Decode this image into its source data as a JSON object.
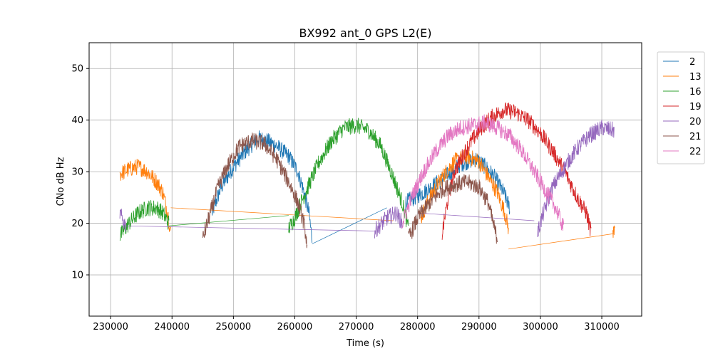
{
  "chart_data": {
    "type": "line",
    "title": "BX992 ant_0 GPS L2(E)",
    "xlabel": "Time (s)",
    "ylabel": "CNo dB Hz",
    "xlim": [
      226500,
      316500
    ],
    "ylim": [
      2,
      55
    ],
    "xticks": [
      230000,
      240000,
      250000,
      260000,
      270000,
      280000,
      290000,
      300000,
      310000
    ],
    "yticks": [
      10,
      20,
      30,
      40,
      50
    ],
    "grid": true,
    "legend_position": "outside-right",
    "noise_amplitude": 1.6,
    "series": [
      {
        "name": "2",
        "color": "#1f77b4",
        "segments": [
          [
            [
              246500,
              22
            ],
            [
              248000,
              27
            ],
            [
              250000,
              31
            ],
            [
              252000,
              34
            ],
            [
              254000,
              36.5
            ],
            [
              255500,
              36
            ],
            [
              257000,
              35
            ],
            [
              259000,
              33
            ],
            [
              260500,
              30
            ],
            [
              261500,
              26
            ],
            [
              262300,
              22
            ],
            [
              262800,
              17
            ]
          ],
          [
            [
              262800,
              16
            ],
            [
              275000,
              23
            ]
          ],
          [
            [
              278000,
              24
            ],
            [
              281000,
              26
            ],
            [
              284000,
              28.5
            ],
            [
              287000,
              31.5
            ],
            [
              289500,
              32.5
            ],
            [
              291000,
              31
            ],
            [
              292500,
              29
            ],
            [
              294000,
              26
            ],
            [
              295000,
              23
            ]
          ]
        ]
      },
      {
        "name": "13",
        "color": "#ff7f0e",
        "segments": [
          [
            [
              231500,
              29.5
            ],
            [
              233000,
              30.5
            ],
            [
              234500,
              31
            ],
            [
              236000,
              30
            ],
            [
              237500,
              28
            ],
            [
              238500,
              26
            ],
            [
              239300,
              22
            ],
            [
              239800,
              18
            ]
          ],
          [
            [
              239800,
              23
            ],
            [
              276000,
              20.5
            ]
          ],
          [
            [
              280500,
              21
            ],
            [
              282000,
              25
            ],
            [
              284000,
              29
            ],
            [
              286000,
              32
            ],
            [
              288000,
              33
            ],
            [
              290000,
              32
            ],
            [
              291500,
              29
            ],
            [
              293000,
              26
            ],
            [
              294200,
              22
            ],
            [
              294800,
              19
            ]
          ],
          [
            [
              294800,
              15
            ],
            [
              312000,
              18
            ]
          ],
          [
            [
              311800,
              17.5
            ],
            [
              312100,
              20
            ]
          ]
        ]
      },
      {
        "name": "16",
        "color": "#2ca02c",
        "segments": [
          [
            [
              231500,
              17.5
            ],
            [
              233000,
              20
            ],
            [
              234500,
              22
            ],
            [
              236000,
              23
            ],
            [
              237500,
              23
            ],
            [
              238500,
              22
            ],
            [
              239500,
              20
            ]
          ],
          [
            [
              239500,
              19.5
            ],
            [
              259000,
              21.5
            ]
          ],
          [
            [
              259000,
              19
            ],
            [
              260000,
              21
            ],
            [
              261000,
              24
            ],
            [
              262500,
              28
            ],
            [
              264000,
              32
            ],
            [
              266000,
              36
            ],
            [
              268000,
              38.5
            ],
            [
              270000,
              39
            ],
            [
              272000,
              38
            ],
            [
              274000,
              35
            ],
            [
              276000,
              29
            ],
            [
              277500,
              24
            ],
            [
              278500,
              19
            ]
          ]
        ]
      },
      {
        "name": "19",
        "color": "#d62728",
        "segments": [
          [
            [
              284000,
              18
            ],
            [
              285000,
              25
            ],
            [
              286000,
              30
            ],
            [
              288000,
              34.5
            ],
            [
              290000,
              38
            ],
            [
              292000,
              40.5
            ],
            [
              294000,
              42
            ],
            [
              296000,
              41.5
            ],
            [
              298000,
              40
            ],
            [
              300000,
              37.5
            ],
            [
              302000,
              34
            ],
            [
              304000,
              30
            ],
            [
              306000,
              25
            ],
            [
              307500,
              22
            ],
            [
              308300,
              18
            ]
          ]
        ]
      },
      {
        "name": "20",
        "color": "#9467bd",
        "segments": [
          [
            [
              231500,
              22
            ],
            [
              232000,
              20.5
            ],
            [
              232500,
              19.5
            ]
          ],
          [
            [
              232500,
              19.5
            ],
            [
              273000,
              18.5
            ]
          ],
          [
            [
              273000,
              18.5
            ],
            [
              275000,
              21
            ],
            [
              276500,
              22
            ],
            [
              277500,
              20
            ]
          ],
          [
            [
              280000,
              22
            ],
            [
              299000,
              20.5
            ]
          ],
          [
            [
              299500,
              18
            ],
            [
              300500,
              22
            ],
            [
              302000,
              27
            ],
            [
              304000,
              31
            ],
            [
              306000,
              34.5
            ],
            [
              308000,
              37
            ],
            [
              310000,
              38.5
            ],
            [
              312000,
              38
            ]
          ]
        ]
      },
      {
        "name": "21",
        "color": "#8c564b",
        "segments": [
          [
            [
              245000,
              17
            ],
            [
              246000,
              21
            ],
            [
              247500,
              27
            ],
            [
              249000,
              31
            ],
            [
              251000,
              35
            ],
            [
              253000,
              36
            ],
            [
              255000,
              35.5
            ],
            [
              257000,
              32.5
            ],
            [
              259000,
              28
            ],
            [
              260500,
              24
            ],
            [
              261500,
              20
            ],
            [
              262000,
              16
            ]
          ],
          [
            [
              278500,
              17
            ],
            [
              280000,
              21
            ],
            [
              282000,
              24
            ],
            [
              284000,
              26.5
            ],
            [
              286000,
              27.5
            ],
            [
              288000,
              28
            ],
            [
              290000,
              27
            ],
            [
              291500,
              24
            ],
            [
              292500,
              19
            ],
            [
              293000,
              17
            ]
          ]
        ]
      },
      {
        "name": "22",
        "color": "#e377c2",
        "segments": [
          [
            [
              277500,
              20
            ],
            [
              279000,
              25
            ],
            [
              281000,
              30
            ],
            [
              283000,
              34
            ],
            [
              285000,
              37
            ],
            [
              287000,
              38.5
            ],
            [
              289000,
              39
            ],
            [
              291000,
              39.5
            ],
            [
              293000,
              38.5
            ],
            [
              295000,
              37
            ],
            [
              297000,
              34
            ],
            [
              299000,
              30
            ],
            [
              301000,
              26
            ],
            [
              302500,
              23
            ],
            [
              303800,
              19
            ]
          ]
        ]
      }
    ]
  }
}
